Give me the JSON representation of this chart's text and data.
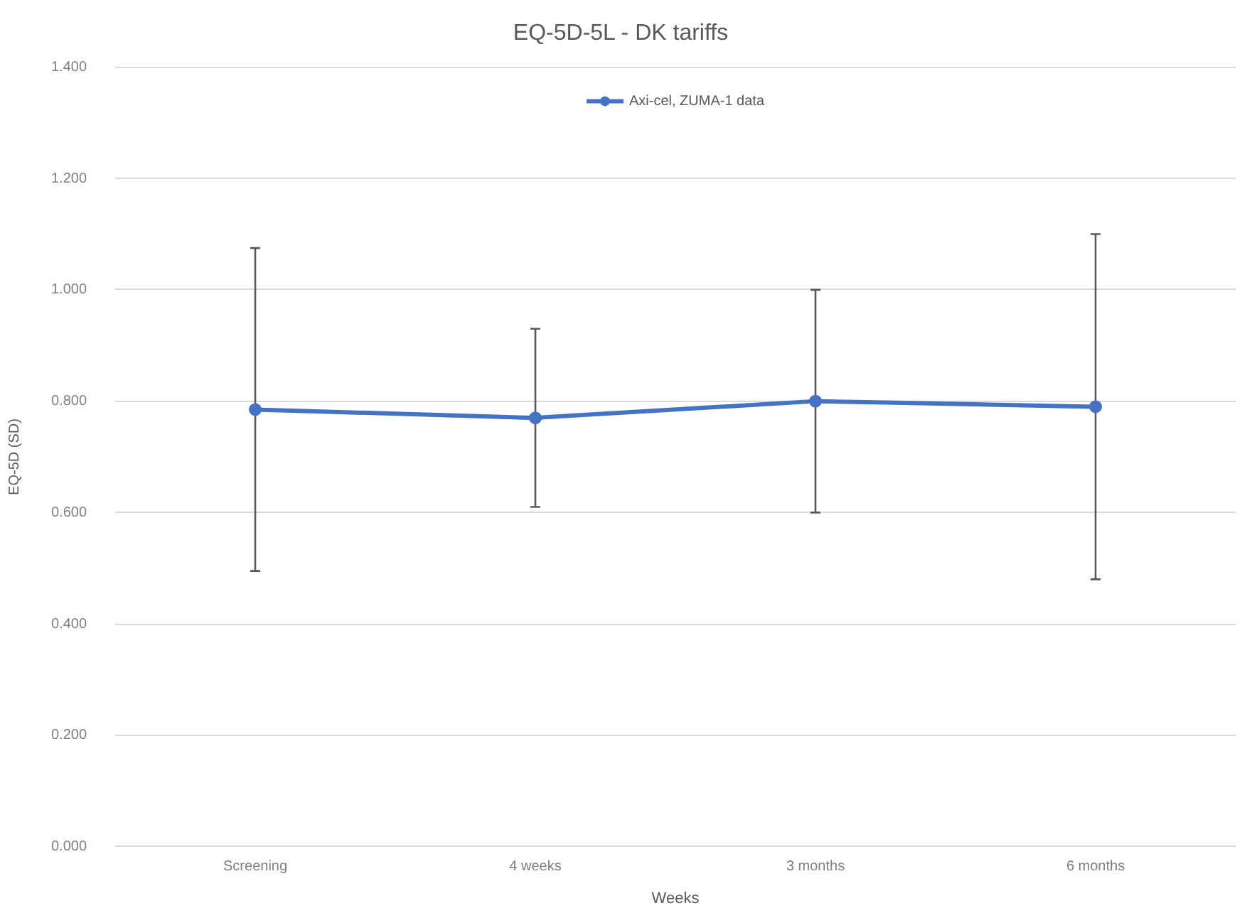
{
  "chart_data": {
    "type": "line",
    "title": "EQ-5D-5L - DK tariffs",
    "xlabel": "Weeks",
    "ylabel": "EQ-5D (SD)",
    "categories": [
      "Screening",
      "4 weeks",
      "3 months",
      "6 months"
    ],
    "series": [
      {
        "name": "Axi-cel, ZUMA-1 data",
        "color": "#4472c4",
        "values": [
          0.785,
          0.77,
          0.8,
          0.79
        ],
        "errors": [
          0.29,
          0.16,
          0.2,
          0.31
        ]
      }
    ],
    "ylim": [
      0,
      1.4
    ],
    "yticks": [
      {
        "value": 0,
        "label": "0.000"
      },
      {
        "value": 0.2,
        "label": "0.200"
      },
      {
        "value": 0.4,
        "label": "0.400"
      },
      {
        "value": 0.6,
        "label": "0.600"
      },
      {
        "value": 0.8,
        "label": "0.800"
      },
      {
        "value": 1.0,
        "label": "1.000"
      },
      {
        "value": 1.2,
        "label": "1.200"
      },
      {
        "value": 1.4,
        "label": "1.400"
      }
    ],
    "grid": "y",
    "legend": "top",
    "marker": "circle"
  }
}
